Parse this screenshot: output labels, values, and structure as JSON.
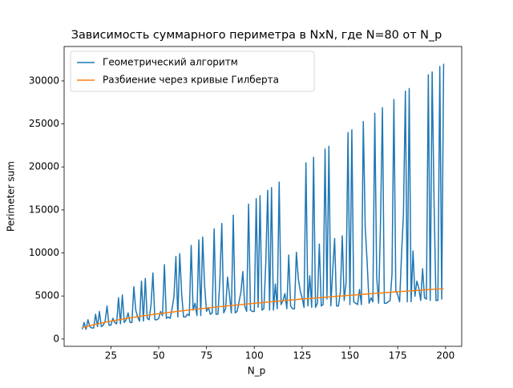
{
  "chart_data": {
    "type": "line",
    "title": "Зависимость суммарного периметра в NxN, где N=80 от N_p",
    "x_label": "N_p",
    "y_label": "Perimeter sum",
    "x": [
      10,
      11,
      12,
      13,
      14,
      15,
      16,
      17,
      18,
      19,
      20,
      21,
      22,
      23,
      24,
      25,
      26,
      27,
      28,
      29,
      30,
      31,
      32,
      33,
      34,
      35,
      36,
      37,
      38,
      39,
      40,
      41,
      42,
      43,
      44,
      45,
      46,
      47,
      48,
      49,
      50,
      51,
      52,
      53,
      54,
      55,
      56,
      57,
      58,
      59,
      60,
      61,
      62,
      63,
      64,
      65,
      66,
      67,
      68,
      69,
      70,
      71,
      72,
      73,
      74,
      75,
      76,
      77,
      78,
      79,
      80,
      81,
      82,
      83,
      84,
      85,
      86,
      87,
      88,
      89,
      90,
      91,
      92,
      93,
      94,
      95,
      96,
      97,
      98,
      99,
      100,
      101,
      102,
      103,
      104,
      105,
      106,
      107,
      108,
      109,
      110,
      111,
      112,
      113,
      114,
      115,
      116,
      117,
      118,
      119,
      120,
      121,
      122,
      123,
      124,
      125,
      126,
      127,
      128,
      129,
      130,
      131,
      132,
      133,
      134,
      135,
      136,
      137,
      138,
      139,
      140,
      141,
      142,
      143,
      144,
      145,
      146,
      147,
      148,
      149,
      150,
      151,
      152,
      153,
      154,
      155,
      156,
      157,
      158,
      159,
      160,
      161,
      162,
      163,
      164,
      165,
      166,
      167,
      168,
      169,
      170,
      171,
      172,
      173,
      174,
      175,
      176,
      177,
      178,
      179,
      180,
      181,
      182,
      183,
      184,
      185,
      186,
      187,
      188,
      189,
      190,
      191,
      192,
      193,
      194,
      195,
      196,
      197,
      198,
      199
    ],
    "series": [
      {
        "name": "Геометрический алгоритм",
        "color": "#1f77b4",
        "values": [
          1120,
          1920,
          1120,
          2240,
          1440,
          1280,
          1280,
          2880,
          1440,
          3200,
          1440,
          1600,
          2080,
          3840,
          1600,
          1600,
          2400,
          1920,
          1760,
          4800,
          1760,
          5120,
          1920,
          2240,
          3040,
          1920,
          1920,
          6080,
          3360,
          2560,
          2080,
          6720,
          2080,
          7040,
          2400,
          2240,
          4000,
          7680,
          2240,
          2240,
          2400,
          3200,
          2720,
          8640,
          2400,
          2560,
          2400,
          3520,
          4960,
          9600,
          2560,
          9920,
          5280,
          2560,
          2560,
          2880,
          2720,
          10880,
          3360,
          4160,
          2720,
          11520,
          2720,
          11840,
          6240,
          3200,
          3680,
          2880,
          3040,
          12800,
          2880,
          2880,
          6880,
          13440,
          3040,
          3520,
          7200,
          5120,
          3040,
          14400,
          3040,
          3200,
          4320,
          5440,
          7840,
          3840,
          3200,
          15680,
          3360,
          3200,
          3200,
          16320,
          3680,
          16640,
          3360,
          3520,
          8800,
          17280,
          3360,
          17600,
          3360,
          6400,
          3520,
          18240,
          4000,
          4480,
          5280,
          3520,
          9760,
          3840,
          3520,
          3520,
          10080,
          7040,
          5600,
          4800,
          3680,
          20480,
          3840,
          7360,
          3680,
          21120,
          3680,
          4160,
          11040,
          3840,
          4000,
          22080,
          4640,
          22400,
          3840,
          8000,
          11680,
          3840,
          3840,
          5440,
          12000,
          4480,
          6560,
          24000,
          4000,
          24320,
          4320,
          4160,
          4000,
          5760,
          4000,
          25280,
          12960,
          8960,
          4160,
          4800,
          4320,
          26240,
          7200,
          4160,
          13600,
          26880,
          4160,
          4160,
          4320,
          4480,
          7520,
          27840,
          5600,
          5120,
          4320,
          9920,
          14560,
          28800,
          4320,
          29120,
          4320,
          10240,
          4960,
          6720,
          5920,
          4480,
          8160,
          4800,
          4640,
          30720,
          4480,
          31040,
          15840,
          4480,
          4480,
          31680,
          4640,
          32000
        ]
      },
      {
        "name": "Разбиение через кривые Гилберта",
        "color": "#ff7f0e",
        "values": [
          1310,
          1380,
          1440,
          1500,
          1550,
          1610,
          1660,
          1710,
          1760,
          1810,
          1860,
          1900,
          1950,
          1990,
          2030,
          2080,
          2120,
          2160,
          2200,
          2230,
          2270,
          2310,
          2350,
          2380,
          2420,
          2460,
          2490,
          2520,
          2560,
          2590,
          2620,
          2660,
          2690,
          2720,
          2750,
          2780,
          2810,
          2850,
          2880,
          2910,
          2930,
          2960,
          2990,
          3020,
          3050,
          3080,
          3110,
          3130,
          3160,
          3190,
          3210,
          3240,
          3270,
          3290,
          3320,
          3350,
          3370,
          3400,
          3420,
          3450,
          3470,
          3500,
          3520,
          3550,
          3570,
          3590,
          3620,
          3640,
          3670,
          3690,
          3710,
          3740,
          3760,
          3780,
          3800,
          3830,
          3850,
          3870,
          3890,
          3920,
          3940,
          3960,
          3980,
          4000,
          4020,
          4050,
          4070,
          4090,
          4110,
          4130,
          4150,
          4170,
          4190,
          4210,
          4230,
          4250,
          4270,
          4290,
          4310,
          4330,
          4350,
          4370,
          4390,
          4410,
          4430,
          4450,
          4470,
          4490,
          4510,
          4530,
          4550,
          4570,
          4580,
          4600,
          4620,
          4640,
          4660,
          4680,
          4700,
          4710,
          4730,
          4750,
          4770,
          4790,
          4800,
          4820,
          4840,
          4860,
          4880,
          4890,
          4910,
          4930,
          4950,
          4960,
          4980,
          5000,
          5010,
          5030,
          5050,
          5070,
          5080,
          5100,
          5120,
          5130,
          5150,
          5170,
          5180,
          5200,
          5220,
          5230,
          5250,
          5270,
          5280,
          5300,
          5310,
          5330,
          5350,
          5360,
          5380,
          5400,
          5410,
          5430,
          5440,
          5460,
          5470,
          5490,
          5510,
          5520,
          5540,
          5550,
          5570,
          5580,
          5600,
          5610,
          5630,
          5640,
          5660,
          5680,
          5690,
          5710,
          5720,
          5740,
          5750,
          5770,
          5780,
          5800,
          5810,
          5820,
          5840,
          5850
        ]
      }
    ],
    "xlim": [
      0.55,
      208.45
    ],
    "ylim": [
      -850,
      34000
    ],
    "xticks": [
      25,
      50,
      75,
      100,
      125,
      150,
      175,
      200
    ],
    "yticks": [
      0,
      5000,
      10000,
      15000,
      20000,
      25000,
      30000
    ],
    "legend": "upper left"
  }
}
